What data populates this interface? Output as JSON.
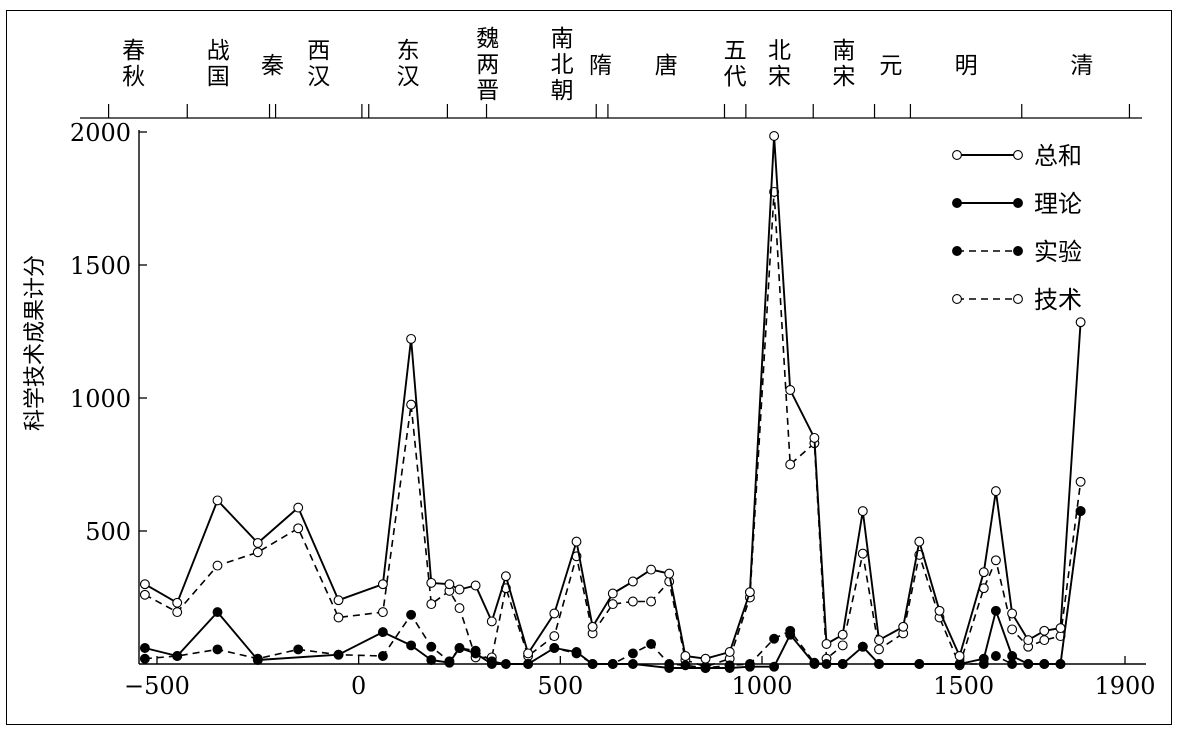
{
  "chart_data": {
    "type": "line",
    "ylabel": "科学技术成果计分",
    "x_ticks": [
      -500,
      0,
      500,
      1000,
      1500,
      1900
    ],
    "y_ticks": [
      500,
      1000,
      1500,
      2000
    ],
    "xlim": [
      -555,
      1950
    ],
    "ylim": [
      0,
      2000
    ],
    "dynasties": [
      "春秋",
      "战国",
      "秦",
      "西汉",
      "东汉",
      "魏两晋",
      "南北朝",
      "隋",
      "唐",
      "五代",
      "北宋",
      "南宋",
      "元",
      "明",
      "清"
    ],
    "dynasty_boundaries": [
      -620,
      -425,
      -221,
      -206,
      8,
      25,
      220,
      317,
      589,
      618,
      907,
      960,
      1127,
      1279,
      1368,
      1644,
      1911
    ],
    "legend_position": "top-right",
    "series": [
      {
        "name": "总和",
        "line": "solid",
        "marker": "open",
        "points": [
          [
            -530,
            300
          ],
          [
            -450,
            230
          ],
          [
            -350,
            615
          ],
          [
            -250,
            455
          ],
          [
            -150,
            588
          ],
          [
            -50,
            240
          ],
          [
            60,
            300
          ],
          [
            130,
            1222
          ],
          [
            180,
            305
          ],
          [
            225,
            300
          ],
          [
            250,
            280
          ],
          [
            290,
            295
          ],
          [
            330,
            160
          ],
          [
            365,
            330
          ],
          [
            420,
            40
          ],
          [
            485,
            190
          ],
          [
            540,
            460
          ],
          [
            580,
            140
          ],
          [
            630,
            265
          ],
          [
            680,
            310
          ],
          [
            725,
            355
          ],
          [
            770,
            340
          ],
          [
            810,
            30
          ],
          [
            860,
            20
          ],
          [
            920,
            45
          ],
          [
            970,
            270
          ],
          [
            1030,
            1985
          ],
          [
            1070,
            1030
          ],
          [
            1130,
            850
          ],
          [
            1160,
            75
          ],
          [
            1200,
            110
          ],
          [
            1250,
            575
          ],
          [
            1290,
            90
          ],
          [
            1350,
            140
          ],
          [
            1390,
            460
          ],
          [
            1440,
            200
          ],
          [
            1490,
            30
          ],
          [
            1550,
            345
          ],
          [
            1580,
            650
          ],
          [
            1620,
            190
          ],
          [
            1660,
            90
          ],
          [
            1700,
            125
          ],
          [
            1740,
            135
          ],
          [
            1790,
            1285
          ]
        ]
      },
      {
        "name": "理论",
        "line": "solid",
        "marker": "filled",
        "points": [
          [
            -530,
            60
          ],
          [
            -450,
            30
          ],
          [
            -350,
            195
          ],
          [
            -250,
            15
          ],
          [
            -50,
            35
          ],
          [
            60,
            120
          ],
          [
            130,
            70
          ],
          [
            180,
            15
          ],
          [
            225,
            5
          ],
          [
            250,
            60
          ],
          [
            290,
            40
          ],
          [
            330,
            0
          ],
          [
            420,
            0
          ],
          [
            485,
            60
          ],
          [
            540,
            45
          ],
          [
            580,
            0
          ],
          [
            630,
            0
          ],
          [
            680,
            0
          ],
          [
            770,
            -15
          ],
          [
            860,
            -15
          ],
          [
            920,
            -15
          ],
          [
            970,
            -10
          ],
          [
            1030,
            -10
          ],
          [
            1070,
            110
          ],
          [
            1130,
            0
          ],
          [
            1200,
            0
          ],
          [
            1250,
            65
          ],
          [
            1290,
            0
          ],
          [
            1390,
            0
          ],
          [
            1490,
            0
          ],
          [
            1550,
            20
          ],
          [
            1580,
            200
          ],
          [
            1620,
            30
          ],
          [
            1660,
            0
          ],
          [
            1700,
            0
          ],
          [
            1740,
            0
          ],
          [
            1790,
            575
          ]
        ]
      },
      {
        "name": "实验",
        "line": "dashed",
        "marker": "filled",
        "points": [
          [
            -530,
            20
          ],
          [
            -450,
            30
          ],
          [
            -350,
            55
          ],
          [
            -250,
            20
          ],
          [
            -150,
            55
          ],
          [
            -50,
            35
          ],
          [
            60,
            30
          ],
          [
            130,
            185
          ],
          [
            180,
            65
          ],
          [
            225,
            10
          ],
          [
            250,
            60
          ],
          [
            290,
            50
          ],
          [
            330,
            10
          ],
          [
            365,
            0
          ],
          [
            420,
            0
          ],
          [
            485,
            60
          ],
          [
            540,
            40
          ],
          [
            580,
            0
          ],
          [
            630,
            0
          ],
          [
            680,
            40
          ],
          [
            725,
            75
          ],
          [
            770,
            0
          ],
          [
            810,
            -5
          ],
          [
            860,
            -15
          ],
          [
            920,
            -5
          ],
          [
            970,
            0
          ],
          [
            1030,
            95
          ],
          [
            1070,
            125
          ],
          [
            1130,
            5
          ],
          [
            1160,
            0
          ],
          [
            1200,
            0
          ],
          [
            1250,
            65
          ],
          [
            1290,
            0
          ],
          [
            1390,
            0
          ],
          [
            1490,
            0
          ],
          [
            1550,
            0
          ],
          [
            1580,
            30
          ],
          [
            1620,
            0
          ],
          [
            1660,
            0
          ],
          [
            1700,
            0
          ],
          [
            1740,
            0
          ],
          [
            1790,
            575
          ]
        ]
      },
      {
        "name": "技术",
        "line": "dashed",
        "marker": "open",
        "points": [
          [
            -530,
            260
          ],
          [
            -450,
            195
          ],
          [
            -350,
            370
          ],
          [
            -250,
            420
          ],
          [
            -150,
            510
          ],
          [
            -50,
            175
          ],
          [
            60,
            195
          ],
          [
            130,
            975
          ],
          [
            180,
            225
          ],
          [
            225,
            275
          ],
          [
            250,
            210
          ],
          [
            290,
            25
          ],
          [
            330,
            25
          ],
          [
            365,
            285
          ],
          [
            420,
            30
          ],
          [
            485,
            105
          ],
          [
            540,
            405
          ],
          [
            580,
            115
          ],
          [
            630,
            225
          ],
          [
            680,
            235
          ],
          [
            725,
            235
          ],
          [
            770,
            310
          ],
          [
            810,
            15
          ],
          [
            860,
            -10
          ],
          [
            920,
            20
          ],
          [
            970,
            250
          ],
          [
            1030,
            1775
          ],
          [
            1070,
            750
          ],
          [
            1130,
            830
          ],
          [
            1160,
            20
          ],
          [
            1200,
            70
          ],
          [
            1250,
            415
          ],
          [
            1290,
            55
          ],
          [
            1350,
            115
          ],
          [
            1390,
            410
          ],
          [
            1440,
            175
          ],
          [
            1490,
            -5
          ],
          [
            1550,
            285
          ],
          [
            1580,
            390
          ],
          [
            1620,
            130
          ],
          [
            1660,
            65
          ],
          [
            1700,
            90
          ],
          [
            1740,
            105
          ],
          [
            1790,
            685
          ]
        ]
      }
    ]
  }
}
